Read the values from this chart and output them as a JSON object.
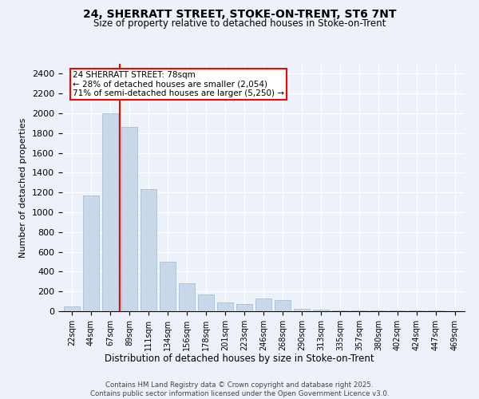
{
  "title_line1": "24, SHERRATT STREET, STOKE-ON-TRENT, ST6 7NT",
  "title_line2": "Size of property relative to detached houses in Stoke-on-Trent",
  "xlabel": "Distribution of detached houses by size in Stoke-on-Trent",
  "ylabel": "Number of detached properties",
  "categories": [
    "22sqm",
    "44sqm",
    "67sqm",
    "89sqm",
    "111sqm",
    "134sqm",
    "156sqm",
    "178sqm",
    "201sqm",
    "223sqm",
    "246sqm",
    "268sqm",
    "290sqm",
    "313sqm",
    "335sqm",
    "357sqm",
    "380sqm",
    "402sqm",
    "424sqm",
    "447sqm",
    "469sqm"
  ],
  "values": [
    50,
    1170,
    2000,
    1860,
    1230,
    500,
    280,
    170,
    90,
    70,
    130,
    110,
    25,
    15,
    10,
    5,
    5,
    5,
    5,
    5,
    2
  ],
  "bar_color": "#c8d8ea",
  "bar_edge_color": "#a0b8d0",
  "vline_color": "red",
  "annotation_text": "24 SHERRATT STREET: 78sqm\n← 28% of detached houses are smaller (2,054)\n71% of semi-detached houses are larger (5,250) →",
  "annotation_box_color": "white",
  "annotation_box_edge": "red",
  "ylim": [
    0,
    2500
  ],
  "yticks": [
    0,
    200,
    400,
    600,
    800,
    1000,
    1200,
    1400,
    1600,
    1800,
    2000,
    2200,
    2400
  ],
  "background_color": "#edf1f9",
  "grid_color": "white",
  "footer_line1": "Contains HM Land Registry data © Crown copyright and database right 2025.",
  "footer_line2": "Contains public sector information licensed under the Open Government Licence v3.0."
}
